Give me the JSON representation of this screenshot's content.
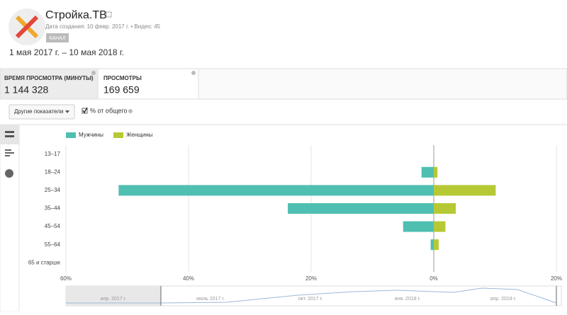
{
  "header": {
    "channel_name": "Стройка.ТВ",
    "info": "Дата создания: 10 февр. 2017 г. • Видео: 45",
    "badge": "КАНАЛ",
    "date_range": "1 мая 2017 г. – 10 мая 2018 г."
  },
  "metrics": [
    {
      "label": "ВРЕМЯ ПРОСМОТРА (МИНУТЫ)",
      "value": "1 144 328"
    },
    {
      "label": "ПРОСМОТРЫ",
      "value": "169 659"
    }
  ],
  "controls": {
    "dropdown": "Другие показатели",
    "checkbox": "% от общего"
  },
  "timeline": {
    "labels": [
      "апр. 2017 г.",
      "июль 2017 г.",
      "окт. 2017 г.",
      "янв. 2018 г.",
      "апр. 2018 г."
    ]
  },
  "chart_data": {
    "type": "diverging_bar",
    "categories": [
      "13–17",
      "18–24",
      "25–34",
      "35–44",
      "45–54",
      "55–64",
      "65 и старше"
    ],
    "series": [
      {
        "name": "Мужчины",
        "color": "#4fbfb2",
        "values": [
          0,
          -2.0,
          -51.4,
          -23.8,
          -5.0,
          -0.5,
          0
        ]
      },
      {
        "name": "Женщины",
        "color": "#b6c935",
        "values": [
          0,
          0.6,
          10.1,
          3.6,
          1.9,
          0.8,
          0
        ]
      }
    ],
    "xlim": [
      -60,
      20
    ],
    "xticks": [
      {
        "value": -60,
        "label": "60%"
      },
      {
        "value": -40,
        "label": "40%"
      },
      {
        "value": -20,
        "label": "20%"
      },
      {
        "value": 0,
        "label": "0%"
      },
      {
        "value": 20,
        "label": "20%"
      }
    ],
    "grid": true
  }
}
